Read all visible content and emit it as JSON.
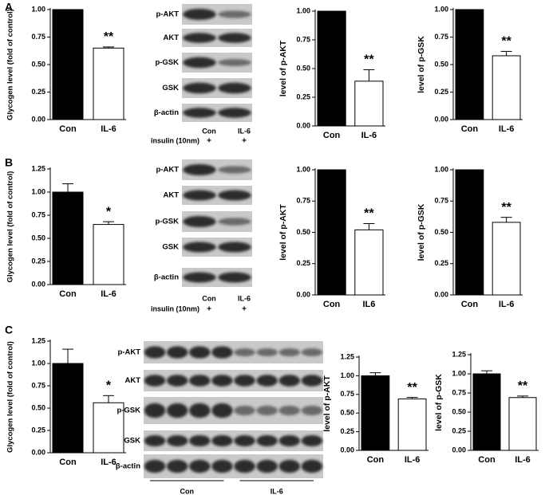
{
  "panels": [
    "A",
    "B",
    "C"
  ],
  "chart_data": [
    {
      "type": "bar",
      "y_label": "Glycogen level (fold of control)",
      "categories": [
        "Con",
        "IL-6"
      ],
      "values": [
        1.0,
        0.65
      ],
      "errors": [
        0,
        0.01
      ],
      "colors": [
        "#000000",
        "#ffffff"
      ],
      "annotation": "**",
      "ylim": [
        0,
        1
      ],
      "yticks": [
        {
          "value": 0,
          "label": "0.00"
        },
        {
          "value": 0.25,
          "label": "0.25"
        },
        {
          "value": 0.5,
          "label": "0.50"
        },
        {
          "value": 0.75,
          "label": "0.75"
        },
        {
          "value": 1,
          "label": "1.00"
        }
      ]
    },
    {
      "type": "bar",
      "y_label": "level of p-AKT",
      "categories": [
        "Con",
        "IL-6"
      ],
      "values": [
        1.0,
        0.39
      ],
      "errors": [
        0,
        0.1
      ],
      "colors": [
        "#000000",
        "#ffffff"
      ],
      "annotation": "**",
      "ylim": [
        0,
        1
      ],
      "yticks": [
        {
          "value": 0,
          "label": "0.00"
        },
        {
          "value": 0.25,
          "label": "0.25"
        },
        {
          "value": 0.5,
          "label": "0.50"
        },
        {
          "value": 0.75,
          "label": "0.75"
        },
        {
          "value": 1,
          "label": "1.00"
        }
      ]
    },
    {
      "type": "bar",
      "y_label": "level of p-GSK",
      "categories": [
        "Con",
        "IL-6"
      ],
      "values": [
        1.0,
        0.58
      ],
      "errors": [
        0,
        0.04
      ],
      "colors": [
        "#000000",
        "#ffffff"
      ],
      "annotation": "**",
      "ylim": [
        0,
        1
      ],
      "yticks": [
        {
          "value": 0,
          "label": "0.00"
        },
        {
          "value": 0.25,
          "label": "0.25"
        },
        {
          "value": 0.5,
          "label": "0.50"
        },
        {
          "value": 0.75,
          "label": "0.75"
        },
        {
          "value": 1,
          "label": "1.00"
        }
      ]
    },
    {
      "type": "bar",
      "y_label": "Glycogen level (fold of control)",
      "categories": [
        "Con",
        "IL-6"
      ],
      "values": [
        1.0,
        0.65
      ],
      "errors": [
        0.09,
        0.03
      ],
      "colors": [
        "#000000",
        "#ffffff"
      ],
      "annotation": "*",
      "ylim": [
        0,
        1.25
      ],
      "yticks": [
        {
          "value": 0,
          "label": "0.00"
        },
        {
          "value": 0.25,
          "label": "0.25"
        },
        {
          "value": 0.5,
          "label": "0.50"
        },
        {
          "value": 0.75,
          "label": "0.75"
        },
        {
          "value": 1,
          "label": "1.00"
        },
        {
          "value": 1.25,
          "label": "1.25"
        }
      ]
    },
    {
      "type": "bar",
      "y_label": "level of p-AKT",
      "categories": [
        "Con",
        "IL6"
      ],
      "values": [
        1.0,
        0.52
      ],
      "errors": [
        0,
        0.05
      ],
      "colors": [
        "#000000",
        "#ffffff"
      ],
      "annotation": "**",
      "ylim": [
        0,
        1
      ],
      "yticks": [
        {
          "value": 0,
          "label": "0.00"
        },
        {
          "value": 0.25,
          "label": "0.25"
        },
        {
          "value": 0.5,
          "label": "0.50"
        },
        {
          "value": 0.75,
          "label": "0.75"
        },
        {
          "value": 1,
          "label": "1.00"
        }
      ]
    },
    {
      "type": "bar",
      "y_label": "level of p-GSK",
      "categories": [
        "Con",
        "IL-6"
      ],
      "values": [
        1.0,
        0.58
      ],
      "errors": [
        0,
        0.04
      ],
      "colors": [
        "#000000",
        "#ffffff"
      ],
      "annotation": "**",
      "ylim": [
        0,
        1
      ],
      "yticks": [
        {
          "value": 0,
          "label": "0.00"
        },
        {
          "value": 0.25,
          "label": "0.25"
        },
        {
          "value": 0.5,
          "label": "0.50"
        },
        {
          "value": 0.75,
          "label": "0.75"
        },
        {
          "value": 1,
          "label": "1.00"
        }
      ]
    },
    {
      "type": "bar",
      "y_label": "Glycogen level (fold of control)",
      "categories": [
        "Con",
        "IL-6"
      ],
      "values": [
        1.0,
        0.56
      ],
      "errors": [
        0.16,
        0.08
      ],
      "colors": [
        "#000000",
        "#ffffff"
      ],
      "annotation": "*",
      "ylim": [
        0,
        1.25
      ],
      "yticks": [
        {
          "value": 0,
          "label": "0.00"
        },
        {
          "value": 0.25,
          "label": "0.25"
        },
        {
          "value": 0.5,
          "label": "0.50"
        },
        {
          "value": 0.75,
          "label": "0.75"
        },
        {
          "value": 1,
          "label": "1.00"
        },
        {
          "value": 1.25,
          "label": "1.25"
        }
      ]
    },
    {
      "type": "bar",
      "y_label": "level of p-AKT",
      "categories": [
        "Con",
        "IL-6"
      ],
      "values": [
        1.0,
        0.69
      ],
      "errors": [
        0.04,
        0.02
      ],
      "colors": [
        "#000000",
        "#ffffff"
      ],
      "annotation": "**",
      "ylim": [
        0,
        1.25
      ],
      "yticks": [
        {
          "value": 0,
          "label": "0.00"
        },
        {
          "value": 0.25,
          "label": "0.25"
        },
        {
          "value": 0.5,
          "label": "0.50"
        },
        {
          "value": 0.75,
          "label": "0.75"
        },
        {
          "value": 1,
          "label": "1.00"
        },
        {
          "value": 1.25,
          "label": "1.25"
        }
      ]
    },
    {
      "type": "bar",
      "y_label": "level of p-GSK",
      "categories": [
        "Con",
        "IL-6"
      ],
      "values": [
        1.0,
        0.69
      ],
      "errors": [
        0.04,
        0.02
      ],
      "colors": [
        "#000000",
        "#ffffff"
      ],
      "annotation": "**",
      "ylim": [
        0,
        1.25
      ],
      "yticks": [
        {
          "value": 0,
          "label": "0.00"
        },
        {
          "value": 0.25,
          "label": "0.25"
        },
        {
          "value": 0.5,
          "label": "0.50"
        },
        {
          "value": 0.75,
          "label": "0.75"
        },
        {
          "value": 1,
          "label": "1.00"
        },
        {
          "value": 1.25,
          "label": "1.25"
        }
      ]
    }
  ],
  "blots": [
    {
      "rows": [
        "p-AKT",
        "AKT",
        "p-GSK",
        "GSK",
        "β-actin"
      ],
      "lanes": [
        "Con",
        "IL-6"
      ],
      "treatment": "insulin (10nm)",
      "signs": [
        "+",
        "+"
      ]
    },
    {
      "rows": [
        "p-AKT",
        "AKT",
        "p-GSK",
        "GSK",
        "β-actin"
      ],
      "lanes": [
        "Con",
        "IL-6"
      ],
      "treatment": "insulin (10nm)",
      "signs": [
        "+",
        "+"
      ]
    },
    {
      "rows": [
        "p-AKT",
        "AKT",
        "p-GSK",
        "GSK",
        "β-actin"
      ],
      "groups": [
        "Con",
        "IL-6"
      ]
    }
  ]
}
